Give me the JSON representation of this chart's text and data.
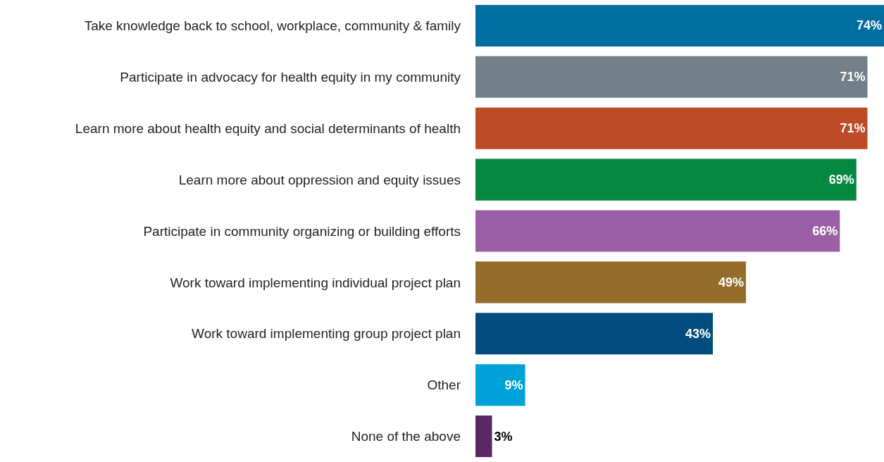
{
  "chart_data": {
    "type": "bar",
    "orientation": "horizontal",
    "categories": [
      "Take knowledge back to school, workplace, community & family",
      "Participate in advocacy for health equity in my community",
      "Learn more about health equity and social determinants of health",
      "Learn more about oppression and equity issues",
      "Participate in community organizing or building efforts",
      "Work toward implementing individual project plan",
      "Work toward implementing group project plan",
      "Other",
      "None of the above"
    ],
    "values": [
      74,
      71,
      71,
      69,
      66,
      49,
      43,
      9,
      3
    ],
    "value_labels": [
      "74%",
      "71%",
      "71%",
      "69%",
      "66%",
      "49%",
      "43%",
      "9%",
      "3%"
    ],
    "colors": [
      "#006ea0",
      "#737f89",
      "#bd4b28",
      "#048841",
      "#9b5fa6",
      "#946d2b",
      "#004c7c",
      "#00a0d8",
      "#5a2767"
    ],
    "xlim": [
      0,
      74
    ]
  }
}
